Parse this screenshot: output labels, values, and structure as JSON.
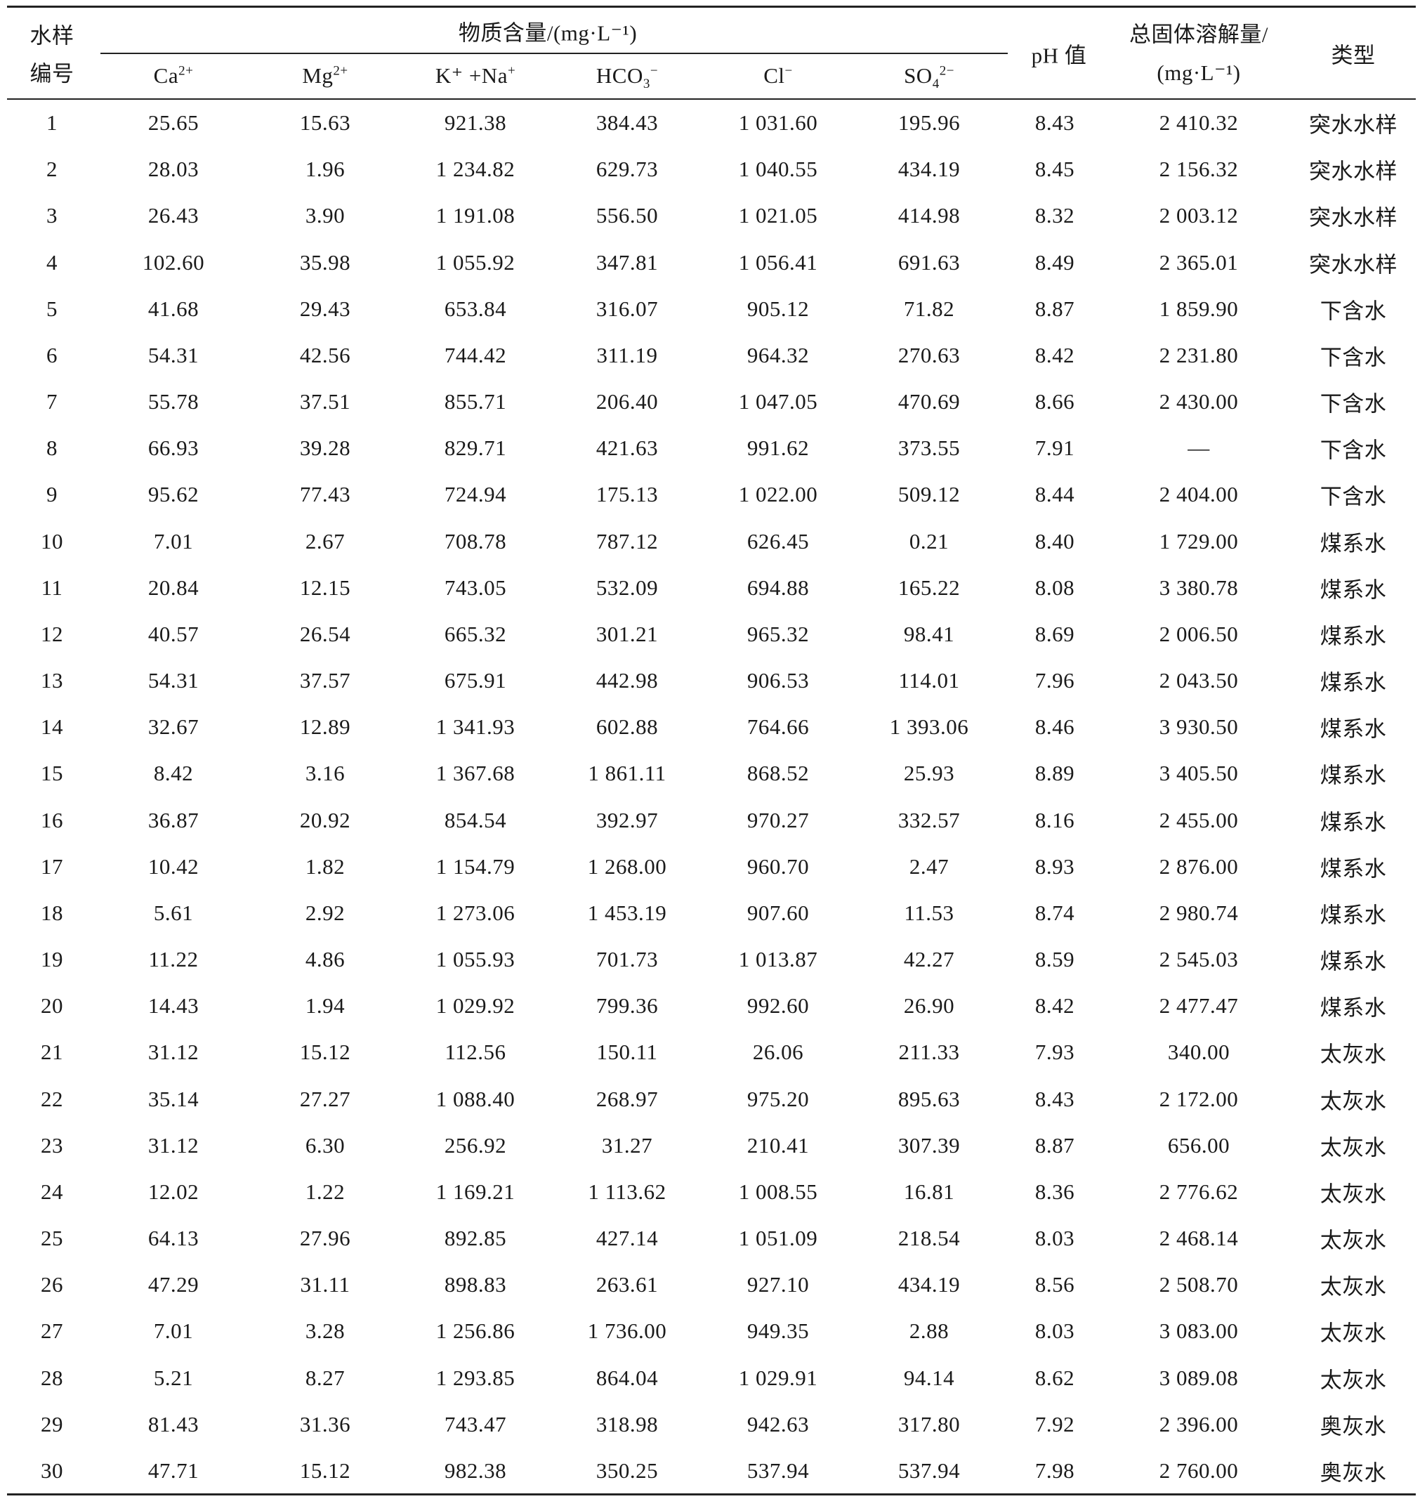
{
  "header": {
    "sample_no_line1": "水样",
    "sample_no_line2": "编号",
    "content_group": "物质含量/(mg·L⁻¹)",
    "ions": [
      {
        "base": "Ca",
        "sup": "2+",
        "sub": ""
      },
      {
        "base": "Mg",
        "sup": "2+",
        "sub": ""
      },
      {
        "base": "K⁺ +Na",
        "sup": "+",
        "sub": ""
      },
      {
        "base": "HCO",
        "sup": "−",
        "sub": "3"
      },
      {
        "base": "Cl",
        "sup": "−",
        "sub": ""
      },
      {
        "base": "SO",
        "sup": "2−",
        "sub": "4"
      }
    ],
    "ph": "pH 值",
    "tds_line1": "总固体溶解量/",
    "tds_line2": "(mg·L⁻¹)",
    "type": "类型"
  },
  "rows": [
    [
      "1",
      "25.65",
      "15.63",
      "921.38",
      "384.43",
      "1 031.60",
      "195.96",
      "8.43",
      "2 410.32",
      "突水水样"
    ],
    [
      "2",
      "28.03",
      "1.96",
      "1 234.82",
      "629.73",
      "1 040.55",
      "434.19",
      "8.45",
      "2 156.32",
      "突水水样"
    ],
    [
      "3",
      "26.43",
      "3.90",
      "1 191.08",
      "556.50",
      "1 021.05",
      "414.98",
      "8.32",
      "2 003.12",
      "突水水样"
    ],
    [
      "4",
      "102.60",
      "35.98",
      "1 055.92",
      "347.81",
      "1 056.41",
      "691.63",
      "8.49",
      "2 365.01",
      "突水水样"
    ],
    [
      "5",
      "41.68",
      "29.43",
      "653.84",
      "316.07",
      "905.12",
      "71.82",
      "8.87",
      "1 859.90",
      "下含水"
    ],
    [
      "6",
      "54.31",
      "42.56",
      "744.42",
      "311.19",
      "964.32",
      "270.63",
      "8.42",
      "2 231.80",
      "下含水"
    ],
    [
      "7",
      "55.78",
      "37.51",
      "855.71",
      "206.40",
      "1 047.05",
      "470.69",
      "8.66",
      "2 430.00",
      "下含水"
    ],
    [
      "8",
      "66.93",
      "39.28",
      "829.71",
      "421.63",
      "991.62",
      "373.55",
      "7.91",
      "—",
      "下含水"
    ],
    [
      "9",
      "95.62",
      "77.43",
      "724.94",
      "175.13",
      "1 022.00",
      "509.12",
      "8.44",
      "2 404.00",
      "下含水"
    ],
    [
      "10",
      "7.01",
      "2.67",
      "708.78",
      "787.12",
      "626.45",
      "0.21",
      "8.40",
      "1 729.00",
      "煤系水"
    ],
    [
      "11",
      "20.84",
      "12.15",
      "743.05",
      "532.09",
      "694.88",
      "165.22",
      "8.08",
      "3 380.78",
      "煤系水"
    ],
    [
      "12",
      "40.57",
      "26.54",
      "665.32",
      "301.21",
      "965.32",
      "98.41",
      "8.69",
      "2 006.50",
      "煤系水"
    ],
    [
      "13",
      "54.31",
      "37.57",
      "675.91",
      "442.98",
      "906.53",
      "114.01",
      "7.96",
      "2 043.50",
      "煤系水"
    ],
    [
      "14",
      "32.67",
      "12.89",
      "1 341.93",
      "602.88",
      "764.66",
      "1 393.06",
      "8.46",
      "3 930.50",
      "煤系水"
    ],
    [
      "15",
      "8.42",
      "3.16",
      "1 367.68",
      "1 861.11",
      "868.52",
      "25.93",
      "8.89",
      "3 405.50",
      "煤系水"
    ],
    [
      "16",
      "36.87",
      "20.92",
      "854.54",
      "392.97",
      "970.27",
      "332.57",
      "8.16",
      "2 455.00",
      "煤系水"
    ],
    [
      "17",
      "10.42",
      "1.82",
      "1 154.79",
      "1 268.00",
      "960.70",
      "2.47",
      "8.93",
      "2 876.00",
      "煤系水"
    ],
    [
      "18",
      "5.61",
      "2.92",
      "1 273.06",
      "1 453.19",
      "907.60",
      "11.53",
      "8.74",
      "2 980.74",
      "煤系水"
    ],
    [
      "19",
      "11.22",
      "4.86",
      "1 055.93",
      "701.73",
      "1 013.87",
      "42.27",
      "8.59",
      "2 545.03",
      "煤系水"
    ],
    [
      "20",
      "14.43",
      "1.94",
      "1 029.92",
      "799.36",
      "992.60",
      "26.90",
      "8.42",
      "2 477.47",
      "煤系水"
    ],
    [
      "21",
      "31.12",
      "15.12",
      "112.56",
      "150.11",
      "26.06",
      "211.33",
      "7.93",
      "340.00",
      "太灰水"
    ],
    [
      "22",
      "35.14",
      "27.27",
      "1 088.40",
      "268.97",
      "975.20",
      "895.63",
      "8.43",
      "2 172.00",
      "太灰水"
    ],
    [
      "23",
      "31.12",
      "6.30",
      "256.92",
      "31.27",
      "210.41",
      "307.39",
      "8.87",
      "656.00",
      "太灰水"
    ],
    [
      "24",
      "12.02",
      "1.22",
      "1 169.21",
      "1 113.62",
      "1 008.55",
      "16.81",
      "8.36",
      "2 776.62",
      "太灰水"
    ],
    [
      "25",
      "64.13",
      "27.96",
      "892.85",
      "427.14",
      "1 051.09",
      "218.54",
      "8.03",
      "2 468.14",
      "太灰水"
    ],
    [
      "26",
      "47.29",
      "31.11",
      "898.83",
      "263.61",
      "927.10",
      "434.19",
      "8.56",
      "2 508.70",
      "太灰水"
    ],
    [
      "27",
      "7.01",
      "3.28",
      "1 256.86",
      "1 736.00",
      "949.35",
      "2.88",
      "8.03",
      "3 083.00",
      "太灰水"
    ],
    [
      "28",
      "5.21",
      "8.27",
      "1 293.85",
      "864.04",
      "1 029.91",
      "94.14",
      "8.62",
      "3 089.08",
      "太灰水"
    ],
    [
      "29",
      "81.43",
      "31.36",
      "743.47",
      "318.98",
      "942.63",
      "317.80",
      "7.92",
      "2 396.00",
      "奥灰水"
    ],
    [
      "30",
      "47.71",
      "15.12",
      "982.38",
      "350.25",
      "537.94",
      "537.94",
      "7.98",
      "2 760.00",
      "奥灰水"
    ]
  ]
}
